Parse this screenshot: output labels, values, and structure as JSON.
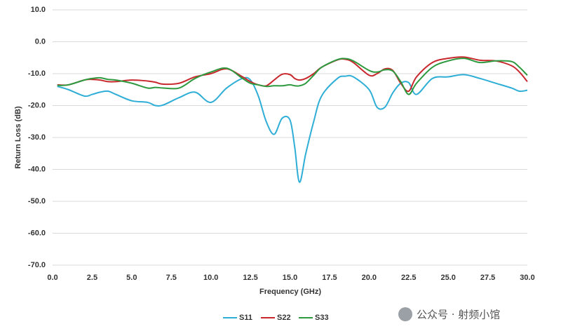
{
  "chart_data": {
    "type": "line",
    "x_label": "Frequency (GHz)",
    "y_label": "Return Loss (dB)",
    "x": [
      0.3,
      1.0,
      2.0,
      2.5,
      3.0,
      3.5,
      4.0,
      5.0,
      6.0,
      6.5,
      7.0,
      8.0,
      9.0,
      10.0,
      11.0,
      12.0,
      12.5,
      13.0,
      13.5,
      14.0,
      14.5,
      15.0,
      15.3,
      15.6,
      16.0,
      16.5,
      17.0,
      18.0,
      18.5,
      19.0,
      20.0,
      20.5,
      21.0,
      21.5,
      22.0,
      22.5,
      23.0,
      24.0,
      25.0,
      26.0,
      27.0,
      28.0,
      29.0,
      29.5,
      30.0
    ],
    "series": [
      {
        "name": "S11",
        "color": "#2eaed6",
        "values": [
          -14,
          -15,
          -17,
          -16.5,
          -15.8,
          -15.5,
          -16.5,
          -18.5,
          -19,
          -20,
          -19.8,
          -17.5,
          -15.8,
          -19,
          -14.5,
          -11.5,
          -12,
          -17,
          -25,
          -29,
          -24,
          -24.5,
          -33,
          -44,
          -35,
          -25,
          -17,
          -11.5,
          -10.8,
          -11,
          -15,
          -20.5,
          -20.5,
          -16,
          -13,
          -12.8,
          -16.5,
          -11.5,
          -11,
          -10.3,
          -11.5,
          -13,
          -14.5,
          -15.5,
          -15.2
        ]
      },
      {
        "name": "S22",
        "color": "#c8282d",
        "values": [
          -13.5,
          -13.5,
          -12,
          -11.8,
          -12,
          -12.5,
          -12.5,
          -12,
          -12.3,
          -12.7,
          -13.3,
          -13,
          -11,
          -10,
          -8.5,
          -11,
          -12.5,
          -13.5,
          -13.8,
          -12,
          -10.2,
          -10.3,
          -11.5,
          -12,
          -11.5,
          -10,
          -8,
          -5.7,
          -5.5,
          -6.5,
          -10.5,
          -10,
          -8.5,
          -9,
          -13,
          -15.5,
          -11,
          -6.5,
          -5.2,
          -4.8,
          -5.8,
          -6,
          -7.5,
          -9.5,
          -12.5
        ]
      },
      {
        "name": "S33",
        "color": "#2e9a3f",
        "values": [
          -13.7,
          -13.5,
          -12,
          -11.5,
          -11.3,
          -11.8,
          -12,
          -13,
          -14.5,
          -14.3,
          -14.5,
          -14.5,
          -11.5,
          -9.5,
          -8.3,
          -11.5,
          -13,
          -13.5,
          -14,
          -13.8,
          -13.8,
          -13.5,
          -13.8,
          -13.8,
          -13,
          -10.5,
          -8,
          -5.6,
          -5.3,
          -6,
          -9,
          -9.5,
          -8.8,
          -9.2,
          -12.5,
          -16.5,
          -13,
          -8,
          -6,
          -5.2,
          -6.5,
          -6,
          -6.2,
          -8,
          -10.5
        ]
      }
    ],
    "xlim": [
      0,
      30
    ],
    "ylim": [
      -70,
      10
    ],
    "xticks": [
      {
        "value": 0,
        "label": "0.0"
      },
      {
        "value": 2.5,
        "label": "2.5"
      },
      {
        "value": 5,
        "label": "5.0"
      },
      {
        "value": 7.5,
        "label": "7.5"
      },
      {
        "value": 10,
        "label": "10.0"
      },
      {
        "value": 12.5,
        "label": "12.5"
      },
      {
        "value": 15,
        "label": "15.0"
      },
      {
        "value": 17.5,
        "label": "17.5"
      },
      {
        "value": 20,
        "label": "20.0"
      },
      {
        "value": 22.5,
        "label": "22.5"
      },
      {
        "value": 25,
        "label": "25.0"
      },
      {
        "value": 27.5,
        "label": "27.5"
      },
      {
        "value": 30,
        "label": "30.0"
      }
    ],
    "yticks": [
      {
        "value": 10,
        "label": "10.0"
      },
      {
        "value": 0,
        "label": "0.0"
      },
      {
        "value": -10,
        "label": "-10.0"
      },
      {
        "value": -20,
        "label": "-20.0"
      },
      {
        "value": -30,
        "label": "-30.0"
      },
      {
        "value": -40,
        "label": "-40.0"
      },
      {
        "value": -50,
        "label": "-50.0"
      },
      {
        "value": -60,
        "label": "-60.0"
      },
      {
        "value": -70,
        "label": "-70.0"
      }
    ],
    "grid": true,
    "legend": "bottom",
    "watermark": "公众号 · 射频小馆"
  }
}
